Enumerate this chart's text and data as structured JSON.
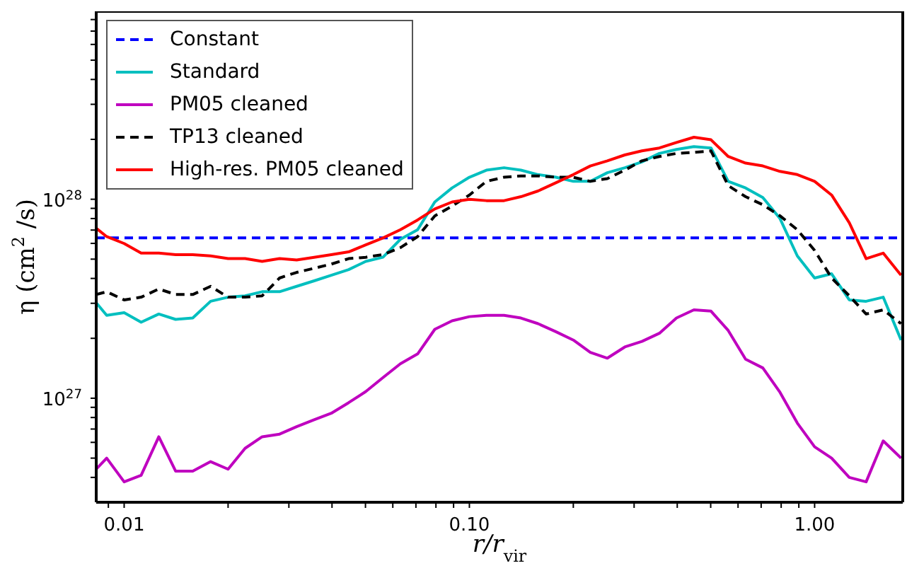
{
  "chart_data": {
    "type": "line",
    "xlabel": "r/r$_{vir}$",
    "ylabel": "η (cm$^{2}$ /s)",
    "log": "xy",
    "legend": "top left",
    "xlim": [
      0.0083,
      1.8
    ],
    "ylim": [
      3e+26,
      8.8e+28
    ],
    "xticks": [
      {
        "value": 0.009,
        "label": null
      },
      {
        "value": 0.01,
        "label": "0.01"
      },
      {
        "value": 0.02,
        "label": null
      },
      {
        "value": 0.03,
        "label": null
      },
      {
        "value": 0.04,
        "label": null
      },
      {
        "value": 0.05,
        "label": null
      },
      {
        "value": 0.06,
        "label": null
      },
      {
        "value": 0.07,
        "label": null
      },
      {
        "value": 0.08,
        "label": null
      },
      {
        "value": 0.09,
        "label": null
      },
      {
        "value": 0.1,
        "label": "0.10"
      },
      {
        "value": 0.2,
        "label": null
      },
      {
        "value": 0.3,
        "label": null
      },
      {
        "value": 0.4,
        "label": null
      },
      {
        "value": 0.5,
        "label": null
      },
      {
        "value": 0.6,
        "label": null
      },
      {
        "value": 0.7,
        "label": null
      },
      {
        "value": 0.8,
        "label": null
      },
      {
        "value": 0.9,
        "label": null
      },
      {
        "value": 1,
        "label": "1.00"
      }
    ],
    "yticks": [
      {
        "value": 4e+26,
        "label": null
      },
      {
        "value": 5e+26,
        "label": null
      },
      {
        "value": 6e+26,
        "label": null
      },
      {
        "value": 7e+26,
        "label": null
      },
      {
        "value": 8e+26,
        "label": null
      },
      {
        "value": 9e+26,
        "label": null
      },
      {
        "value": 1e+27,
        "label": "10$^{27}$"
      },
      {
        "value": 2e+27,
        "label": null
      },
      {
        "value": 3e+27,
        "label": null
      },
      {
        "value": 4e+27,
        "label": null
      },
      {
        "value": 5e+27,
        "label": null
      },
      {
        "value": 6e+27,
        "label": null
      },
      {
        "value": 7e+27,
        "label": null
      },
      {
        "value": 8e+27,
        "label": null
      },
      {
        "value": 9e+27,
        "label": null
      },
      {
        "value": 1e+28,
        "label": "10$^{28}$"
      },
      {
        "value": 2e+28,
        "label": null
      },
      {
        "value": 3e+28,
        "label": null
      },
      {
        "value": 4e+28,
        "label": null
      },
      {
        "value": 5e+28,
        "label": null
      },
      {
        "value": 6e+28,
        "label": null
      },
      {
        "value": 7e+28,
        "label": null
      },
      {
        "value": 8e+28,
        "label": null
      }
    ],
    "x": [
      0.0083,
      0.0089,
      0.01,
      0.0112,
      0.0126,
      0.0141,
      0.0158,
      0.0178,
      0.02,
      0.0224,
      0.0251,
      0.0282,
      0.0316,
      0.0355,
      0.0398,
      0.0447,
      0.0501,
      0.0562,
      0.0631,
      0.0708,
      0.0794,
      0.0891,
      0.1,
      0.112,
      0.126,
      0.141,
      0.158,
      0.178,
      0.2,
      0.224,
      0.251,
      0.282,
      0.316,
      0.355,
      0.398,
      0.447,
      0.501,
      0.562,
      0.631,
      0.708,
      0.794,
      0.891,
      1,
      1.12,
      1.26,
      1.41,
      1.58,
      1.78
    ],
    "series": [
      {
        "name": "Constant",
        "color": "#0000ff",
        "line_style": "dashed",
        "x": [
          0.0083,
          1.8
        ],
        "values": [
          6.4e+27,
          6.4e+27
        ]
      },
      {
        "name": "Standard",
        "color": "#00bfbf",
        "line_style": "solid",
        "values": [
          3.02e+27,
          2.61e+27,
          2.69e+27,
          2.41e+27,
          2.65e+27,
          2.49e+27,
          2.53e+27,
          3.07e+27,
          3.22e+27,
          3.27e+27,
          3.43e+27,
          3.43e+27,
          3.65e+27,
          3.89e+27,
          4.15e+27,
          4.43e+27,
          4.87e+27,
          5.11e+27,
          6.29e+27,
          7.03e+27,
          9.69e+27,
          1.14e+28,
          1.29e+28,
          1.4e+28,
          1.44e+28,
          1.4e+28,
          1.33e+28,
          1.29e+28,
          1.23e+28,
          1.23e+28,
          1.36e+28,
          1.44e+28,
          1.54e+28,
          1.7e+28,
          1.78e+28,
          1.84e+28,
          1.81e+28,
          1.23e+28,
          1.14e+28,
          1.02e+28,
          7.99e+27,
          5.19e+27,
          4.02e+27,
          4.22e+27,
          3.12e+27,
          3.07e+27,
          3.22e+27,
          1.96e+27
        ]
      },
      {
        "name": "PM05 cleaned",
        "color": "#bf00bf",
        "line_style": "solid",
        "values": [
          4.4e+26,
          5e+26,
          3.8e+26,
          4.1e+26,
          6.4e+26,
          4.3e+26,
          4.3e+26,
          4.8e+26,
          4.4e+26,
          5.6e+26,
          6.4e+26,
          6.6e+26,
          7.2e+26,
          7.8e+26,
          8.4e+26,
          9.5e+26,
          1.08e+27,
          1.27e+27,
          1.49e+27,
          1.67e+27,
          2.22e+27,
          2.45e+27,
          2.57e+27,
          2.61e+27,
          2.61e+27,
          2.53e+27,
          2.37e+27,
          2.16e+27,
          1.96e+27,
          1.7e+27,
          1.59e+27,
          1.81e+27,
          1.93e+27,
          2.12e+27,
          2.53e+27,
          2.78e+27,
          2.74e+27,
          2.19e+27,
          1.57e+27,
          1.42e+27,
          1.07e+27,
          7.5e+26,
          5.7e+26,
          5e+26,
          4e+26,
          3.8e+26,
          6.1e+26,
          5e+26
        ]
      },
      {
        "name": "TP13 cleaned",
        "color": "#000000",
        "line_style": "dashed",
        "values": [
          3.32e+27,
          3.43e+27,
          3.12e+27,
          3.22e+27,
          3.54e+27,
          3.32e+27,
          3.32e+27,
          3.65e+27,
          3.22e+27,
          3.22e+27,
          3.27e+27,
          4.02e+27,
          4.29e+27,
          4.5e+27,
          4.72e+27,
          5.03e+27,
          5.11e+27,
          5.27e+27,
          5.71e+27,
          6.49e+27,
          8.25e+27,
          9.23e+27,
          1.05e+28,
          1.23e+28,
          1.29e+28,
          1.31e+28,
          1.31e+28,
          1.29e+28,
          1.29e+28,
          1.23e+28,
          1.27e+28,
          1.4e+28,
          1.56e+28,
          1.64e+28,
          1.7e+28,
          1.72e+28,
          1.75e+28,
          1.17e+28,
          1.03e+28,
          9.38e+27,
          8.25e+27,
          7.03e+27,
          5.53e+27,
          4.02e+27,
          3.27e+27,
          2.65e+27,
          2.78e+27,
          2.37e+27
        ]
      },
      {
        "name": "High-res. PM05 cleaned",
        "color": "#ff0000",
        "line_style": "solid",
        "values": [
          7.15e+27,
          6.49e+27,
          5.99e+27,
          5.36e+27,
          5.36e+27,
          5.27e+27,
          5.27e+27,
          5.19e+27,
          5.03e+27,
          5.03e+27,
          4.87e+27,
          5.03e+27,
          4.95e+27,
          5.11e+27,
          5.27e+27,
          5.44e+27,
          5.9e+27,
          6.39e+27,
          7.03e+27,
          7.87e+27,
          8.94e+27,
          9.69e+27,
          1e+28,
          9.84e+27,
          9.84e+27,
          1.03e+28,
          1.1e+28,
          1.21e+28,
          1.33e+28,
          1.47e+28,
          1.56e+28,
          1.67e+28,
          1.75e+28,
          1.81e+28,
          1.93e+28,
          2.05e+28,
          1.99e+28,
          1.64e+28,
          1.52e+28,
          1.47e+28,
          1.38e+28,
          1.33e+28,
          1.23e+28,
          1.05e+28,
          7.62e+27,
          5.03e+27,
          5.36e+27,
          4.15e+27
        ]
      }
    ]
  }
}
